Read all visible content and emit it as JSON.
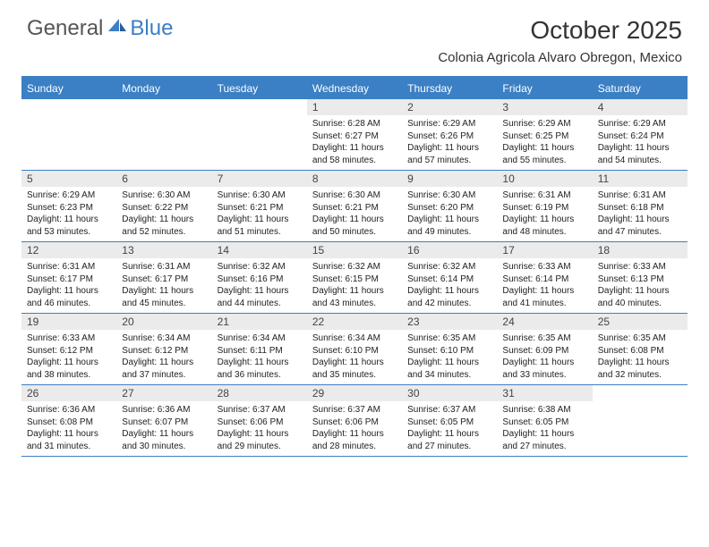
{
  "logo": {
    "text1": "General",
    "text2": "Blue"
  },
  "title": "October 2025",
  "location": "Colonia Agricola Alvaro Obregon, Mexico",
  "colors": {
    "accent": "#3b7fc4",
    "dateBg": "#ebebeb",
    "text": "#222222",
    "headerText": "#ffffff",
    "logoGray": "#555555"
  },
  "dayNames": [
    "Sunday",
    "Monday",
    "Tuesday",
    "Wednesday",
    "Thursday",
    "Friday",
    "Saturday"
  ],
  "weeks": [
    [
      null,
      null,
      null,
      {
        "d": "1",
        "sr": "6:28 AM",
        "ss": "6:27 PM",
        "dl": "11 hours and 58 minutes."
      },
      {
        "d": "2",
        "sr": "6:29 AM",
        "ss": "6:26 PM",
        "dl": "11 hours and 57 minutes."
      },
      {
        "d": "3",
        "sr": "6:29 AM",
        "ss": "6:25 PM",
        "dl": "11 hours and 55 minutes."
      },
      {
        "d": "4",
        "sr": "6:29 AM",
        "ss": "6:24 PM",
        "dl": "11 hours and 54 minutes."
      }
    ],
    [
      {
        "d": "5",
        "sr": "6:29 AM",
        "ss": "6:23 PM",
        "dl": "11 hours and 53 minutes."
      },
      {
        "d": "6",
        "sr": "6:30 AM",
        "ss": "6:22 PM",
        "dl": "11 hours and 52 minutes."
      },
      {
        "d": "7",
        "sr": "6:30 AM",
        "ss": "6:21 PM",
        "dl": "11 hours and 51 minutes."
      },
      {
        "d": "8",
        "sr": "6:30 AM",
        "ss": "6:21 PM",
        "dl": "11 hours and 50 minutes."
      },
      {
        "d": "9",
        "sr": "6:30 AM",
        "ss": "6:20 PM",
        "dl": "11 hours and 49 minutes."
      },
      {
        "d": "10",
        "sr": "6:31 AM",
        "ss": "6:19 PM",
        "dl": "11 hours and 48 minutes."
      },
      {
        "d": "11",
        "sr": "6:31 AM",
        "ss": "6:18 PM",
        "dl": "11 hours and 47 minutes."
      }
    ],
    [
      {
        "d": "12",
        "sr": "6:31 AM",
        "ss": "6:17 PM",
        "dl": "11 hours and 46 minutes."
      },
      {
        "d": "13",
        "sr": "6:31 AM",
        "ss": "6:17 PM",
        "dl": "11 hours and 45 minutes."
      },
      {
        "d": "14",
        "sr": "6:32 AM",
        "ss": "6:16 PM",
        "dl": "11 hours and 44 minutes."
      },
      {
        "d": "15",
        "sr": "6:32 AM",
        "ss": "6:15 PM",
        "dl": "11 hours and 43 minutes."
      },
      {
        "d": "16",
        "sr": "6:32 AM",
        "ss": "6:14 PM",
        "dl": "11 hours and 42 minutes."
      },
      {
        "d": "17",
        "sr": "6:33 AM",
        "ss": "6:14 PM",
        "dl": "11 hours and 41 minutes."
      },
      {
        "d": "18",
        "sr": "6:33 AM",
        "ss": "6:13 PM",
        "dl": "11 hours and 40 minutes."
      }
    ],
    [
      {
        "d": "19",
        "sr": "6:33 AM",
        "ss": "6:12 PM",
        "dl": "11 hours and 38 minutes."
      },
      {
        "d": "20",
        "sr": "6:34 AM",
        "ss": "6:12 PM",
        "dl": "11 hours and 37 minutes."
      },
      {
        "d": "21",
        "sr": "6:34 AM",
        "ss": "6:11 PM",
        "dl": "11 hours and 36 minutes."
      },
      {
        "d": "22",
        "sr": "6:34 AM",
        "ss": "6:10 PM",
        "dl": "11 hours and 35 minutes."
      },
      {
        "d": "23",
        "sr": "6:35 AM",
        "ss": "6:10 PM",
        "dl": "11 hours and 34 minutes."
      },
      {
        "d": "24",
        "sr": "6:35 AM",
        "ss": "6:09 PM",
        "dl": "11 hours and 33 minutes."
      },
      {
        "d": "25",
        "sr": "6:35 AM",
        "ss": "6:08 PM",
        "dl": "11 hours and 32 minutes."
      }
    ],
    [
      {
        "d": "26",
        "sr": "6:36 AM",
        "ss": "6:08 PM",
        "dl": "11 hours and 31 minutes."
      },
      {
        "d": "27",
        "sr": "6:36 AM",
        "ss": "6:07 PM",
        "dl": "11 hours and 30 minutes."
      },
      {
        "d": "28",
        "sr": "6:37 AM",
        "ss": "6:06 PM",
        "dl": "11 hours and 29 minutes."
      },
      {
        "d": "29",
        "sr": "6:37 AM",
        "ss": "6:06 PM",
        "dl": "11 hours and 28 minutes."
      },
      {
        "d": "30",
        "sr": "6:37 AM",
        "ss": "6:05 PM",
        "dl": "11 hours and 27 minutes."
      },
      {
        "d": "31",
        "sr": "6:38 AM",
        "ss": "6:05 PM",
        "dl": "11 hours and 27 minutes."
      },
      null
    ]
  ],
  "labels": {
    "sunrise": "Sunrise: ",
    "sunset": "Sunset: ",
    "daylight": "Daylight: "
  }
}
